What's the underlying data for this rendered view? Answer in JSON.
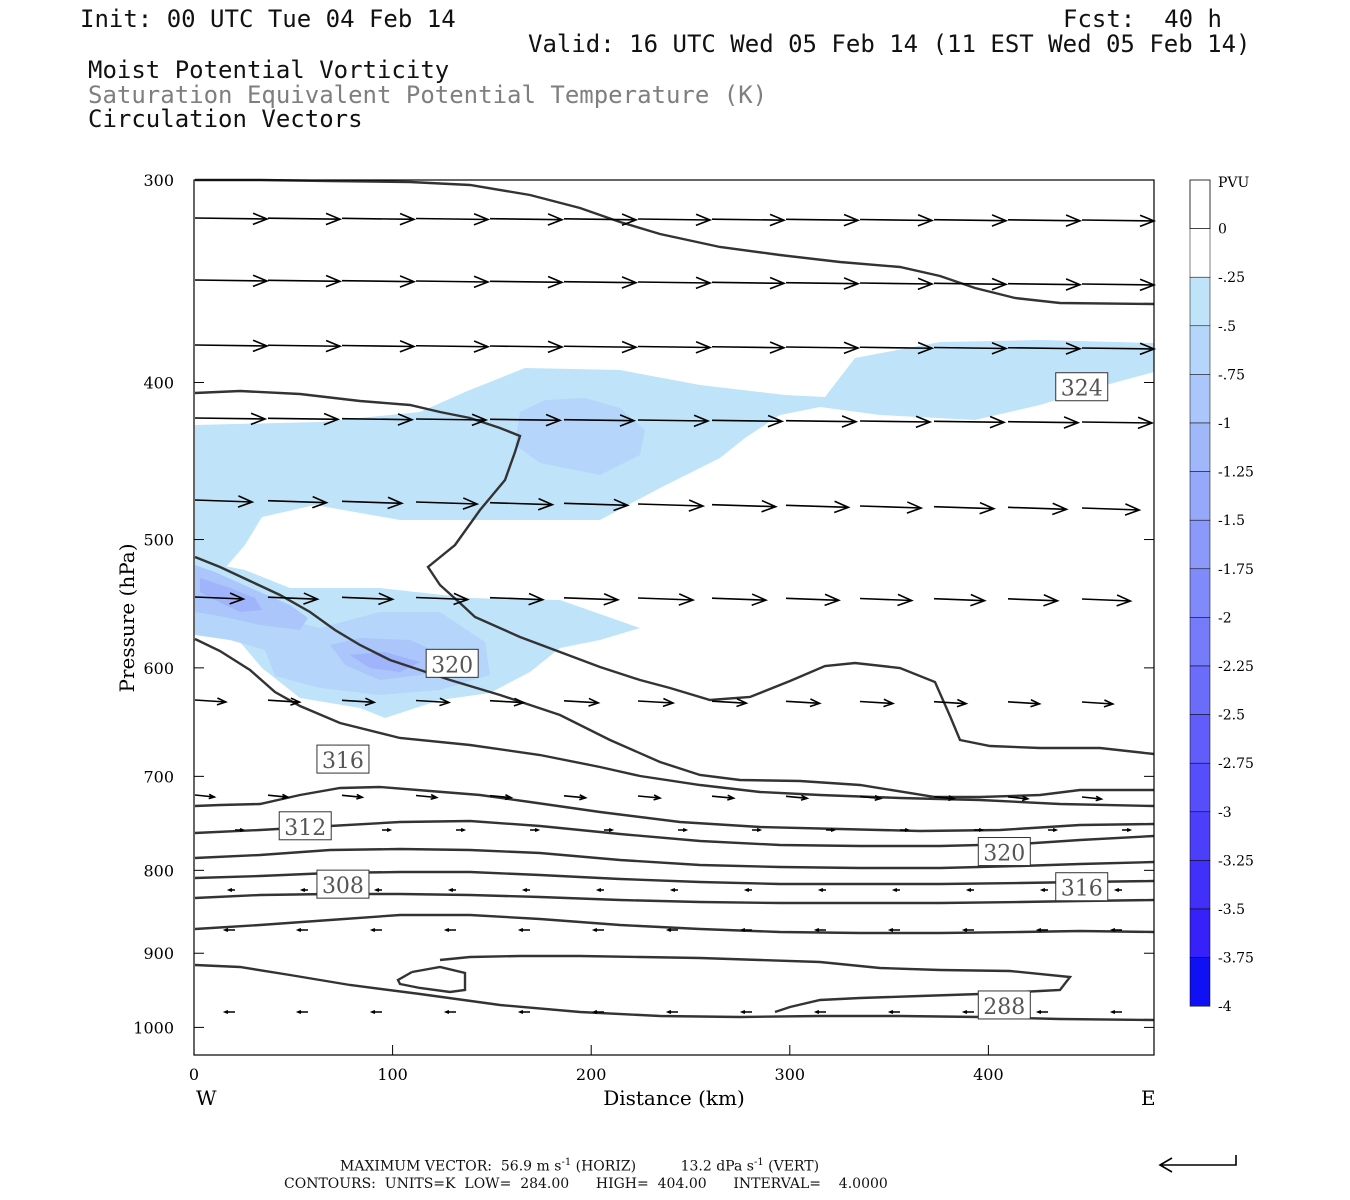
{
  "header": {
    "init": "Init: 00 UTC Tue 04 Feb 14",
    "fcst": "Fcst:  40 h",
    "valid": "Valid: 16 UTC Wed 05 Feb 14 (11 EST Wed 05 Feb 14)",
    "line1": "Moist Potential Vorticity",
    "line2": "Saturation Equivalent Potential Temperature (K)",
    "line3": "Circulation Vectors"
  },
  "footer": {
    "maxvec_label": "MAXIMUM VECTOR:",
    "maxvec_horiz": "56.9 m s",
    "maxvec_horiz_unit": "(HORIZ)",
    "maxvec_vert": "13.2 dPa s",
    "maxvec_vert_unit": "(VERT)",
    "exp": "-1",
    "contours": "CONTOURS:  UNITS=K  LOW=  284.00      HIGH=  404.00      INTERVAL=    4.0000"
  },
  "chart_data": {
    "type": "contour",
    "xlabel": "Distance (km)",
    "ylabel": "Pressure (hPa)",
    "x_ticks": [
      0,
      100,
      200,
      300,
      400
    ],
    "y_ticks": [
      300,
      400,
      500,
      600,
      700,
      800,
      900,
      1000
    ],
    "xlim": [
      0,
      485
    ],
    "ylim": [
      1040,
      300
    ],
    "y_scale": "log",
    "x_end_labels": {
      "left": "W",
      "right": "E"
    },
    "colorbar": {
      "label": "PVU",
      "levels": [
        "0",
        "-.25",
        "-.5",
        "-.75",
        "-1",
        "-1.25",
        "-1.5",
        "-1.75",
        "-2",
        "-2.25",
        "-2.5",
        "-2.75",
        "-3",
        "-3.25",
        "-3.5",
        "-3.75",
        "-4"
      ],
      "colors": [
        "#ffffff",
        "#ffffff",
        "#bfe4fa",
        "#b5d5fa",
        "#aac6fa",
        "#a0b7fa",
        "#95a8fa",
        "#8b99fa",
        "#808afa",
        "#767bfa",
        "#6b6cfa",
        "#615dfa",
        "#564efa",
        "#4c3ffa",
        "#4130fa",
        "#3721fa",
        "#1010f5"
      ]
    },
    "mpv_shading": [
      {
        "level": "-0.25 to -0.5",
        "color": "#bfe4fa"
      },
      {
        "level": "-0.5 to -0.75",
        "color": "#b5d5fa"
      },
      {
        "level": "-0.75 to -1",
        "color": "#aac6fa"
      }
    ],
    "contour_labels": [
      {
        "value": "324",
        "x": 447,
        "p": 403
      },
      {
        "value": "320",
        "x": 130,
        "p": 597
      },
      {
        "value": "316",
        "x": 75,
        "p": 684
      },
      {
        "value": "312",
        "x": 56,
        "p": 752
      },
      {
        "value": "320",
        "x": 408,
        "p": 780
      },
      {
        "value": "308",
        "x": 75,
        "p": 817
      },
      {
        "value": "316",
        "x": 447,
        "p": 820
      },
      {
        "value": "288",
        "x": 408,
        "p": 970
      }
    ],
    "contour_low": 284,
    "contour_high": 404,
    "contour_interval": 4
  }
}
